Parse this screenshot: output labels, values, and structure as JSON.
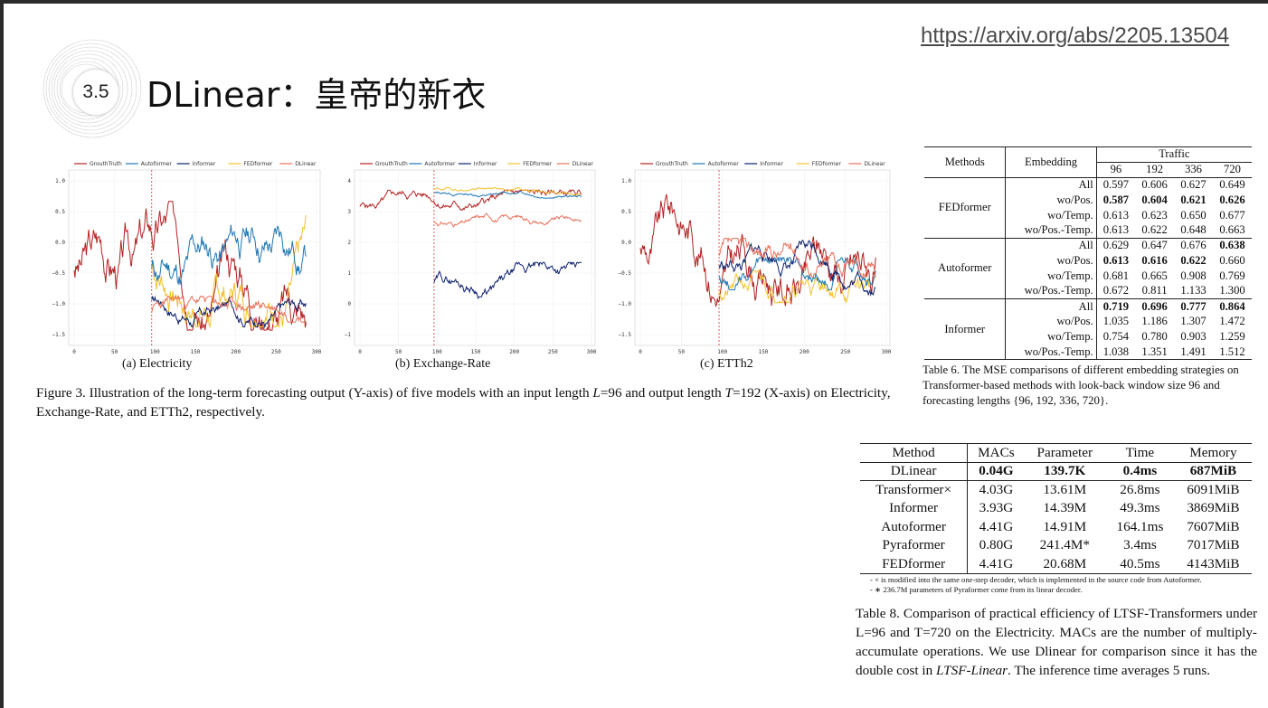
{
  "header": {
    "url": "https://arxiv.org/abs/2205.13504",
    "section_number": "3.5",
    "title": "DLinear：皇帝的新衣"
  },
  "figure3": {
    "legend": [
      "GrouthTruth",
      "Autoformer",
      "Informer",
      "FEDformer",
      "DLinear"
    ],
    "colors": {
      "GrouthTruth": "#b22222",
      "Autoformer": "#1f77b4",
      "Informer": "#0b1f6b",
      "FEDformer": "#f2c12e",
      "DLinear": "#e8705a"
    },
    "panels": [
      {
        "label": "(a) Electricity",
        "yticks": [
          "1.0",
          "0.5",
          "0.0",
          "−0.5",
          "−1.0",
          "−1.5"
        ],
        "xticks": [
          "0",
          "50",
          "100",
          "150",
          "200",
          "250",
          "300"
        ]
      },
      {
        "label": "(b) Exchange-Rate",
        "yticks": [
          "4",
          "3",
          "2",
          "1",
          "0",
          "−1"
        ],
        "xticks": [
          "0",
          "50",
          "100",
          "150",
          "200",
          "250",
          "300"
        ]
      },
      {
        "label": "(c) ETTh2",
        "yticks": [
          "1.0",
          "0.5",
          "0.0",
          "−0.5",
          "−1.0",
          "−1.5"
        ],
        "xticks": [
          "0",
          "50",
          "100",
          "150",
          "200",
          "250",
          "300"
        ]
      }
    ],
    "caption_prefix": "Figure 3.  Illustration of the long-term forecasting output (Y-axis) of five models with an input length ",
    "caption_L": "L",
    "caption_mid": "=96 and output length ",
    "caption_T": "T",
    "caption_suffix": "=192 (X-axis) on Electricity, Exchange-Rate, and ETTh2, respectively."
  },
  "table6": {
    "headers": {
      "methods": "Methods",
      "embedding": "Embedding",
      "dataset": "Traffic",
      "horizons": [
        "96",
        "192",
        "336",
        "720"
      ]
    },
    "groups": [
      {
        "method": "FEDformer",
        "rows": [
          {
            "emb": "All",
            "vals": [
              "0.597",
              "0.606",
              "0.627",
              "0.649"
            ]
          },
          {
            "emb": "wo/Pos.",
            "vals": [
              "0.587",
              "0.604",
              "0.621",
              "0.626"
            ]
          },
          {
            "emb": "wo/Temp.",
            "vals": [
              "0.613",
              "0.623",
              "0.650",
              "0.677"
            ]
          },
          {
            "emb": "wo/Pos.-Temp.",
            "vals": [
              "0.613",
              "0.622",
              "0.648",
              "0.663"
            ]
          }
        ]
      },
      {
        "method": "Autoformer",
        "rows": [
          {
            "emb": "All",
            "vals": [
              "0.629",
              "0.647",
              "0.676",
              "0.638"
            ]
          },
          {
            "emb": "wo/Pos.",
            "vals": [
              "0.613",
              "0.616",
              "0.622",
              "0.660"
            ]
          },
          {
            "emb": "wo/Temp.",
            "vals": [
              "0.681",
              "0.665",
              "0.908",
              "0.769"
            ]
          },
          {
            "emb": "wo/Pos.-Temp.",
            "vals": [
              "0.672",
              "0.811",
              "1.133",
              "1.300"
            ]
          }
        ]
      },
      {
        "method": "Informer",
        "rows": [
          {
            "emb": "All",
            "vals": [
              "0.719",
              "0.696",
              "0.777",
              "0.864"
            ]
          },
          {
            "emb": "wo/Pos.",
            "vals": [
              "1.035",
              "1.186",
              "1.307",
              "1.472"
            ]
          },
          {
            "emb": "wo/Temp.",
            "vals": [
              "0.754",
              "0.780",
              "0.903",
              "1.259"
            ]
          },
          {
            "emb": "wo/Pos.-Temp.",
            "vals": [
              "1.038",
              "1.351",
              "1.491",
              "1.512"
            ]
          }
        ]
      }
    ],
    "caption": "Table 6.  The MSE comparisons of different embedding strategies on Transformer-based methods with look-back window size 96 and forecasting lengths {96, 192, 336, 720}."
  },
  "table8": {
    "headers": [
      "Method",
      "MACs",
      "Parameter",
      "Time",
      "Memory"
    ],
    "rows": [
      [
        "DLinear",
        "0.04G",
        "139.7K",
        "0.4ms",
        "687MiB"
      ],
      [
        "Transformer×",
        "4.03G",
        "13.61M",
        "26.8ms",
        "6091MiB"
      ],
      [
        "Informer",
        "3.93G",
        "14.39M",
        "49.3ms",
        "3869MiB"
      ],
      [
        "Autoformer",
        "4.41G",
        "14.91M",
        "164.1ms",
        "7607MiB"
      ],
      [
        "Pyraformer",
        "0.80G",
        "241.4M*",
        "3.4ms",
        "7017MiB"
      ],
      [
        "FEDformer",
        "4.41G",
        "20.68M",
        "40.5ms",
        "4143MiB"
      ]
    ],
    "notes": [
      "- × is modified into the same one-step decoder, which is implemented in the source code from Autoformer.",
      "- ∗ 236.7M parameters of Pyraformer come from its linear decoder."
    ],
    "caption_a": "Table 8. Comparison of practical efficiency of LTSF-Transformers under L=96 and T=720 on the Electricity. MACs are the number of multiply-accumulate operations.  We use Dlinear for comparison since it has the double cost in ",
    "caption_em": "LTSF-Linear",
    "caption_b": ".  The inference time averages 5 runs."
  }
}
